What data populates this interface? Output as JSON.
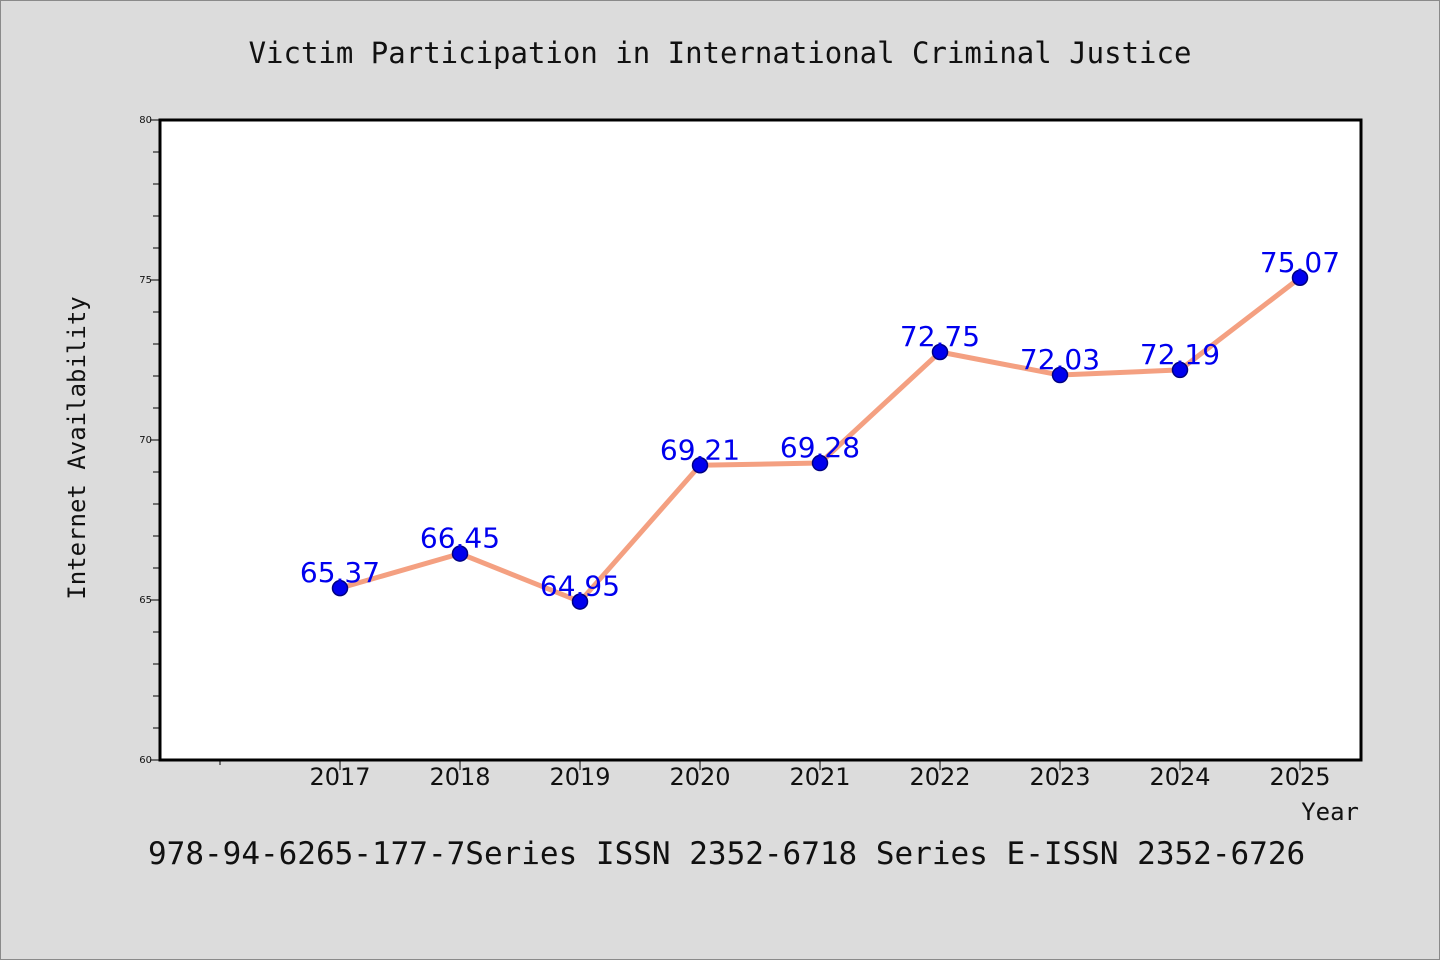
{
  "chart_data": {
    "type": "line",
    "title": "Victim Participation in International Criminal Justice",
    "xlabel": "Year",
    "ylabel": "Internet Availability",
    "x": [
      "2017",
      "2018",
      "2019",
      "2020",
      "2021",
      "2022",
      "2023",
      "2024",
      "2025"
    ],
    "series": [
      {
        "values": [
          65.37,
          66.45,
          64.95,
          69.21,
          69.28,
          72.75,
          72.03,
          72.19,
          75.07
        ],
        "data_labels": [
          "65.37",
          "66.45",
          "64.95",
          "69.21",
          "69.28",
          "72.75",
          "72.03",
          "72.19",
          "75.07"
        ]
      }
    ],
    "ylim": [
      60,
      80
    ],
    "yticks": [
      60,
      65,
      70,
      75,
      80
    ],
    "yticks_labels": [
      "60",
      "65",
      "70",
      "75",
      "80"
    ],
    "grid": false,
    "colors": {
      "line": "#f4a081",
      "marker": "#0000ee",
      "marker_edge": "#000080",
      "data_label": "#0000ee",
      "plot_background": "#ffffff",
      "page_background": "#dcdcdc"
    }
  },
  "footer": {
    "text": "978-94-6265-177-7Series ISSN 2352-6718 Series E-ISSN 2352-6726"
  }
}
